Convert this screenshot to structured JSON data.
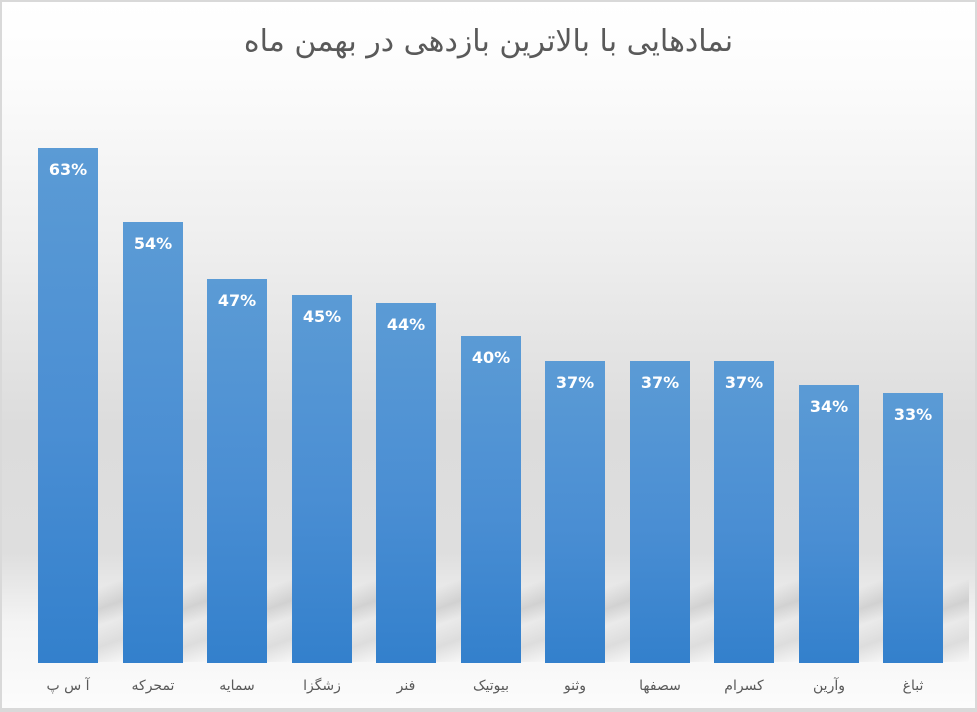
{
  "chart_data": {
    "type": "bar",
    "title": "نمادهایی با بالاترین بازدهی در بهمن ماه",
    "categories": [
      "آ س پ",
      "تمحرکه",
      "سمایه",
      "زشگزا",
      "فنر",
      "بیوتیک",
      "وثنو",
      "سصفها",
      "کسرام",
      "وآرین",
      "ثباغ"
    ],
    "values": [
      63,
      54,
      47,
      45,
      44,
      40,
      37,
      37,
      37,
      34,
      33
    ],
    "value_labels": [
      "63%",
      "54%",
      "47%",
      "45%",
      "44%",
      "40%",
      "37%",
      "37%",
      "37%",
      "34%",
      "33%"
    ],
    "xlabel": "",
    "ylabel": "",
    "unit": "%",
    "ylim": [
      0,
      63
    ],
    "grid": false,
    "legend": "none",
    "data_labels": "inside end",
    "colors": {
      "bar_top": "#5b9bd5",
      "bar_bottom": "#3380cc",
      "label": "#ffffff",
      "axis_text": "#595959",
      "title": "#595959"
    }
  }
}
